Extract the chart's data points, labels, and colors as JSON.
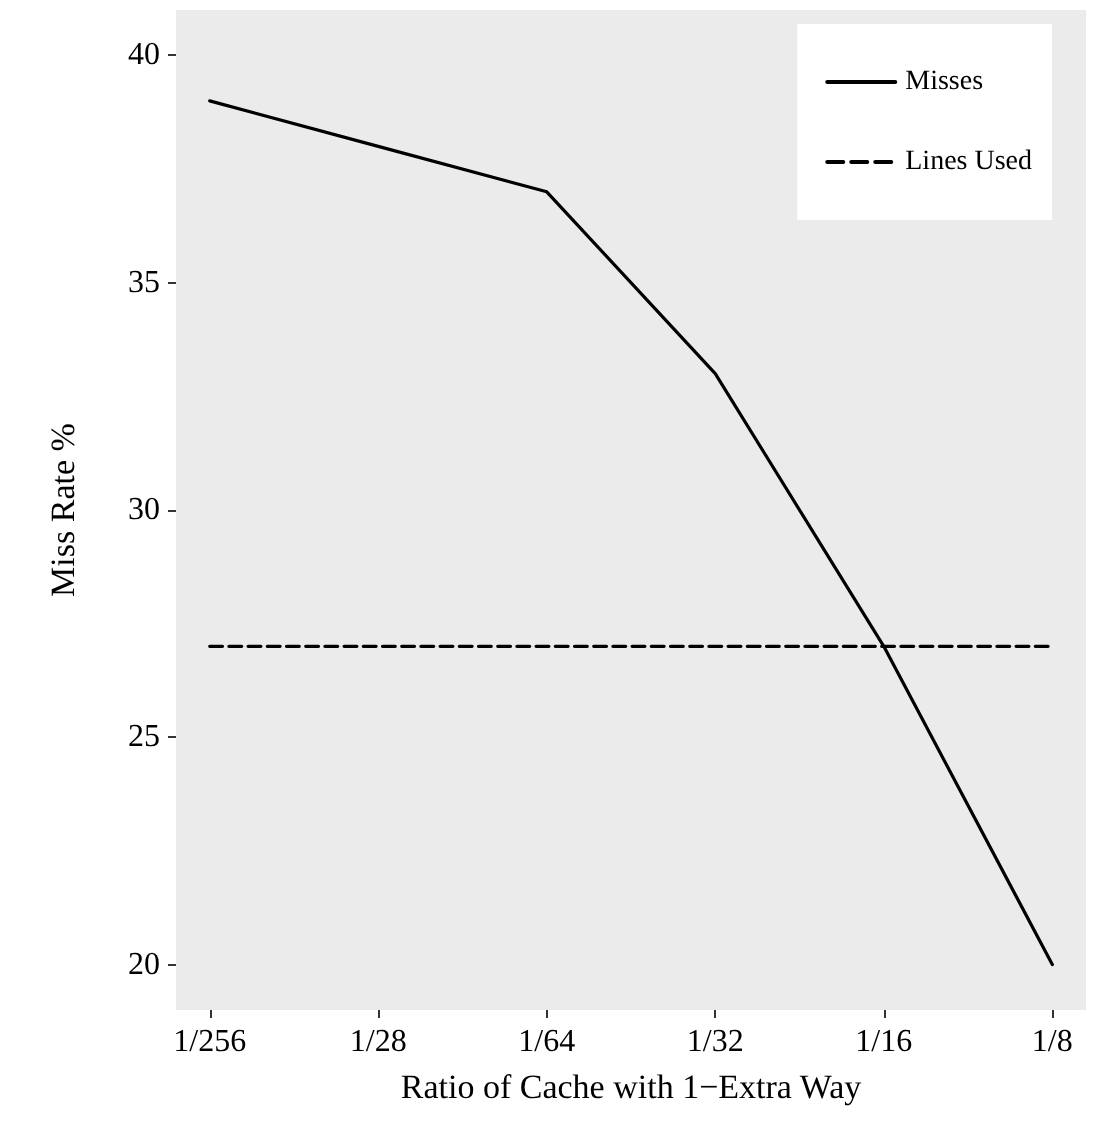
{
  "chart_data": {
    "type": "line",
    "xlabel": "Ratio of Cache with 1−Extra Way",
    "ylabel": "Miss Rate %",
    "categories": [
      "1/256",
      "1/28",
      "1/64",
      "1/32",
      "1/16",
      "1/8"
    ],
    "series": [
      {
        "name": "Misses",
        "color": "#000000",
        "values": [
          39,
          38,
          37,
          33,
          27,
          20
        ],
        "line_style": "solid"
      },
      {
        "name": "Lines Used",
        "color": "#000000",
        "values": [
          27,
          27,
          27,
          27,
          27,
          27
        ],
        "line_style": "dashed"
      }
    ],
    "ylim": [
      19,
      41
    ],
    "yticks": [
      20,
      25,
      30,
      35,
      40
    ],
    "grid": false,
    "legend": "top right",
    "marker": "none"
  }
}
